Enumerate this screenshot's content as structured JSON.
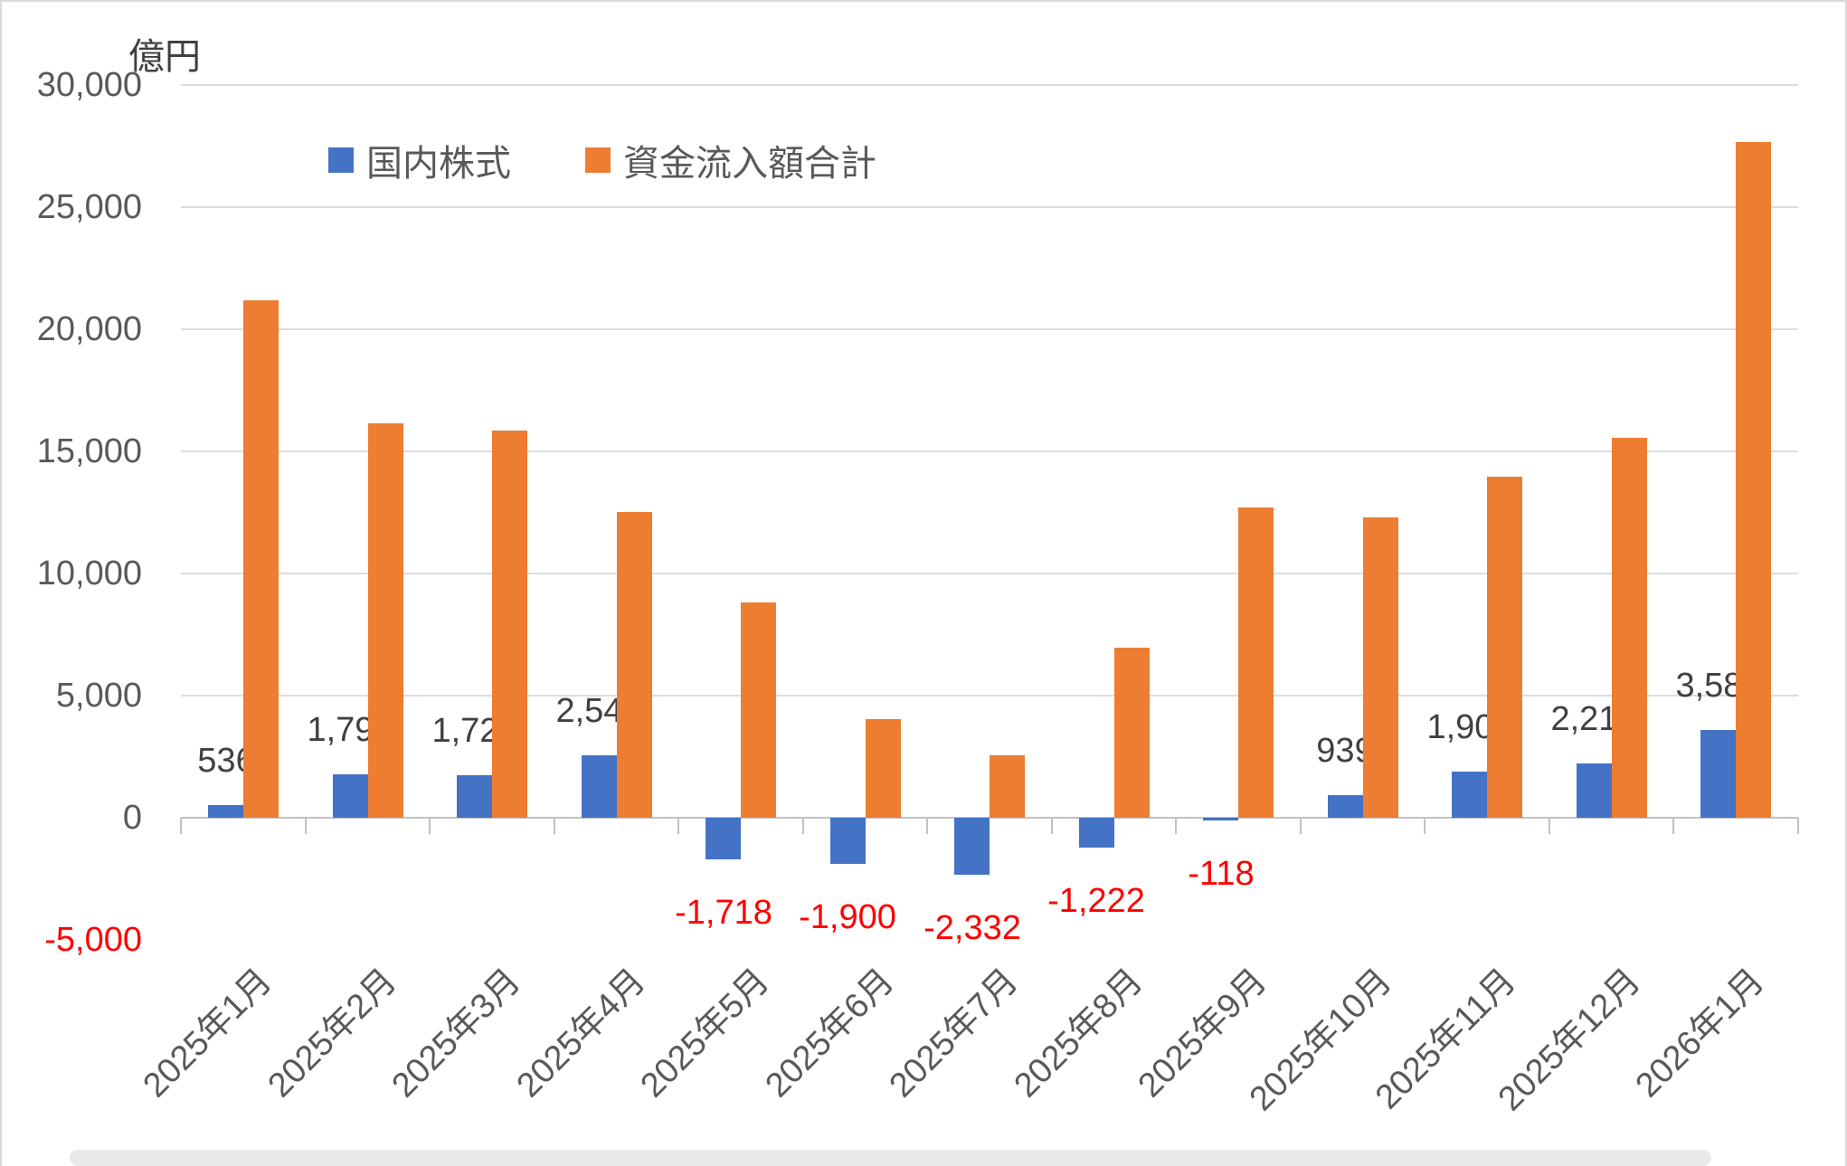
{
  "axis_title": "億円",
  "legend": [
    {
      "label": "国内株式",
      "color": "#4472C4"
    },
    {
      "label": "資金流入額合計",
      "color": "#ED7D31"
    }
  ],
  "colors": {
    "blue_series": "#4472C4",
    "orange_series": "#ED7D31",
    "gridline": "#DCDCDC",
    "axis_text": "#595959",
    "data_label": "#404040",
    "negative_label": "#FF0000"
  },
  "y_axis": {
    "labels": [
      {
        "value": 30000,
        "text": "30,000",
        "gridline": true,
        "negative": false
      },
      {
        "value": 25000,
        "text": "25,000",
        "gridline": true,
        "negative": false
      },
      {
        "value": 20000,
        "text": "20,000",
        "gridline": true,
        "negative": false
      },
      {
        "value": 15000,
        "text": "15,000",
        "gridline": true,
        "negative": false
      },
      {
        "value": 10000,
        "text": "10,000",
        "gridline": true,
        "negative": false
      },
      {
        "value": 5000,
        "text": "5,000",
        "gridline": true,
        "negative": false
      },
      {
        "value": 0,
        "text": "0",
        "gridline": false,
        "negative": false
      },
      {
        "value": -5000,
        "text": "-5,000",
        "gridline": false,
        "negative": true
      }
    ]
  },
  "chart_data": {
    "type": "bar",
    "title": "",
    "ylabel": "億円",
    "xlabel": "",
    "ylim": [
      -5000,
      30000
    ],
    "ytick_step": 5000,
    "grid": true,
    "legend_position": "top",
    "categories": [
      "2025年1月",
      "2025年2月",
      "2025年3月",
      "2025年4月",
      "2025年5月",
      "2025年6月",
      "2025年7月",
      "2025年8月",
      "2025年9月",
      "2025年10月",
      "2025年11月",
      "2025年12月",
      "2026年1月"
    ],
    "series": [
      {
        "name": "国内株式",
        "key": "domestic-stocks",
        "color": "#4472C4",
        "values": [
          536,
          1795,
          1728,
          2543,
          -1718,
          -1900,
          -2332,
          -1222,
          -118,
          939,
          1904,
          2217,
          3587
        ],
        "labels": [
          "536",
          "1,795",
          "1,728",
          "2,543",
          "-1,718",
          "-1,900",
          "-2,332",
          "-1,222",
          "-118",
          "939",
          "1,904",
          "2,217",
          "3,587"
        ],
        "show_labels": true
      },
      {
        "name": "資金流入額合計",
        "key": "total-inflow",
        "color": "#ED7D31",
        "values": [
          21200,
          16150,
          15850,
          12500,
          8800,
          4050,
          2550,
          6950,
          12700,
          12300,
          13950,
          15550,
          27650
        ],
        "labels": [],
        "show_labels": false
      }
    ]
  }
}
